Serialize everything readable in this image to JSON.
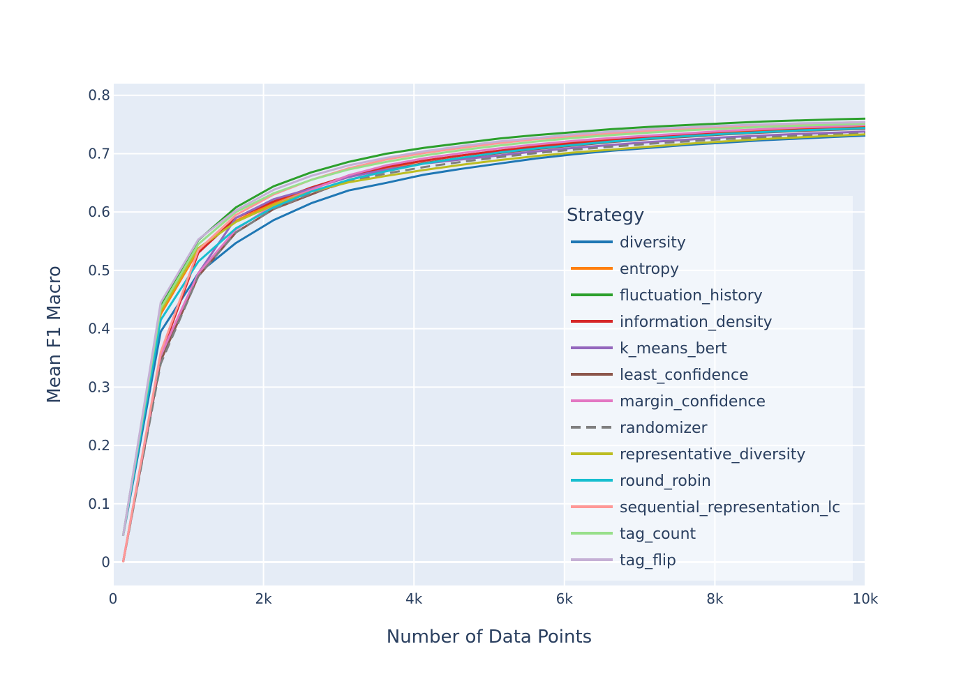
{
  "chart_data": {
    "type": "line",
    "xlabel": "Number of Data Points",
    "ylabel": "Mean F1 Macro",
    "xlim": [
      0,
      10000
    ],
    "ylim": [
      -0.04,
      0.82
    ],
    "x_ticks": [
      0,
      2000,
      4000,
      6000,
      8000,
      10000
    ],
    "x_tick_labels": [
      "0",
      "2k",
      "4k",
      "6k",
      "8k",
      "10k"
    ],
    "y_ticks": [
      0,
      0.1,
      0.2,
      0.3,
      0.4,
      0.5,
      0.6,
      0.7,
      0.8
    ],
    "y_tick_labels": [
      "0",
      "0.1",
      "0.2",
      "0.3",
      "0.4",
      "0.5",
      "0.6",
      "0.7",
      "0.8"
    ],
    "grid": true,
    "legend": {
      "title": "Strategy",
      "placement": "right, inside plot"
    },
    "colors": {
      "plot_background": "#e5ecf6",
      "grid": "#ffffff",
      "text": "#2a3f5f"
    },
    "x": [
      134,
      634,
      1134,
      1634,
      2134,
      2634,
      3134,
      3634,
      4134,
      4634,
      5134,
      5634,
      6134,
      6634,
      7134,
      7634,
      8134,
      8634,
      9134,
      9634,
      10000
    ],
    "series": [
      {
        "name": "diversity",
        "color": "#1f77b4",
        "dash": "solid",
        "values": [
          0.045,
          0.395,
          0.495,
          0.547,
          0.586,
          0.615,
          0.637,
          0.65,
          0.664,
          0.674,
          0.683,
          0.692,
          0.699,
          0.705,
          0.71,
          0.715,
          0.719,
          0.723,
          0.726,
          0.729,
          0.731
        ]
      },
      {
        "name": "entropy",
        "color": "#ff7f0e",
        "dash": "solid",
        "values": [
          0.045,
          0.425,
          0.535,
          0.585,
          0.615,
          0.64,
          0.66,
          0.675,
          0.688,
          0.697,
          0.705,
          0.713,
          0.719,
          0.725,
          0.729,
          0.733,
          0.737,
          0.74,
          0.742,
          0.744,
          0.746
        ]
      },
      {
        "name": "fluctuation_history",
        "color": "#2ca02c",
        "dash": "solid",
        "values": [
          0.045,
          0.44,
          0.552,
          0.608,
          0.644,
          0.668,
          0.686,
          0.7,
          0.71,
          0.718,
          0.726,
          0.732,
          0.737,
          0.742,
          0.746,
          0.749,
          0.752,
          0.755,
          0.757,
          0.759,
          0.76
        ]
      },
      {
        "name": "information_density",
        "color": "#d62728",
        "dash": "solid",
        "values": [
          0.0,
          0.355,
          0.53,
          0.59,
          0.618,
          0.642,
          0.662,
          0.677,
          0.688,
          0.697,
          0.705,
          0.712,
          0.718,
          0.723,
          0.728,
          0.732,
          0.735,
          0.738,
          0.741,
          0.743,
          0.745
        ]
      },
      {
        "name": "k_means_bert",
        "color": "#9467bd",
        "dash": "solid",
        "values": [
          0.0,
          0.355,
          0.495,
          0.59,
          0.622,
          0.64,
          0.66,
          0.673,
          0.683,
          0.69,
          0.697,
          0.704,
          0.71,
          0.715,
          0.72,
          0.724,
          0.728,
          0.731,
          0.734,
          0.736,
          0.738
        ]
      },
      {
        "name": "least_confidence",
        "color": "#8c564b",
        "dash": "solid",
        "values": [
          0.0,
          0.345,
          0.49,
          0.565,
          0.605,
          0.63,
          0.655,
          0.67,
          0.684,
          0.693,
          0.701,
          0.708,
          0.714,
          0.72,
          0.725,
          0.729,
          0.733,
          0.736,
          0.739,
          0.741,
          0.743
        ]
      },
      {
        "name": "margin_confidence",
        "color": "#e377c2",
        "dash": "solid",
        "values": [
          0.0,
          0.355,
          0.495,
          0.57,
          0.612,
          0.638,
          0.663,
          0.68,
          0.692,
          0.701,
          0.709,
          0.716,
          0.722,
          0.727,
          0.731,
          0.735,
          0.739,
          0.742,
          0.745,
          0.747,
          0.749
        ]
      },
      {
        "name": "randomizer",
        "color": "#7f7f7f",
        "dash": "dash",
        "values": [
          0.0,
          0.34,
          0.49,
          0.565,
          0.605,
          0.632,
          0.652,
          0.666,
          0.677,
          0.686,
          0.694,
          0.701,
          0.707,
          0.712,
          0.717,
          0.721,
          0.725,
          0.728,
          0.731,
          0.733,
          0.735
        ]
      },
      {
        "name": "representative_diversity",
        "color": "#bcbd22",
        "dash": "solid",
        "values": [
          0.045,
          0.43,
          0.538,
          0.583,
          0.612,
          0.635,
          0.651,
          0.662,
          0.672,
          0.681,
          0.689,
          0.696,
          0.702,
          0.707,
          0.712,
          0.717,
          0.721,
          0.725,
          0.728,
          0.731,
          0.733
        ]
      },
      {
        "name": "round_robin",
        "color": "#17becf",
        "dash": "solid",
        "values": [
          0.045,
          0.415,
          0.515,
          0.572,
          0.608,
          0.635,
          0.655,
          0.67,
          0.683,
          0.693,
          0.702,
          0.709,
          0.715,
          0.721,
          0.726,
          0.73,
          0.734,
          0.737,
          0.74,
          0.742,
          0.744
        ]
      },
      {
        "name": "sequential_representation_lc",
        "color": "#ff9896",
        "dash": "solid",
        "values": [
          0.0,
          0.36,
          0.535,
          0.595,
          0.63,
          0.655,
          0.675,
          0.69,
          0.701,
          0.71,
          0.718,
          0.725,
          0.73,
          0.735,
          0.739,
          0.743,
          0.746,
          0.749,
          0.751,
          0.753,
          0.754
        ]
      },
      {
        "name": "tag_count",
        "color": "#98df8a",
        "dash": "solid",
        "values": [
          0.045,
          0.435,
          0.545,
          0.6,
          0.632,
          0.655,
          0.673,
          0.686,
          0.697,
          0.706,
          0.714,
          0.721,
          0.727,
          0.732,
          0.736,
          0.74,
          0.743,
          0.746,
          0.748,
          0.75,
          0.751
        ]
      },
      {
        "name": "tag_flip",
        "color": "#c5b0d5",
        "dash": "solid",
        "values": [
          0.045,
          0.445,
          0.553,
          0.603,
          0.638,
          0.662,
          0.68,
          0.693,
          0.704,
          0.713,
          0.721,
          0.727,
          0.733,
          0.738,
          0.742,
          0.745,
          0.748,
          0.75,
          0.752,
          0.753,
          0.754
        ]
      }
    ]
  }
}
